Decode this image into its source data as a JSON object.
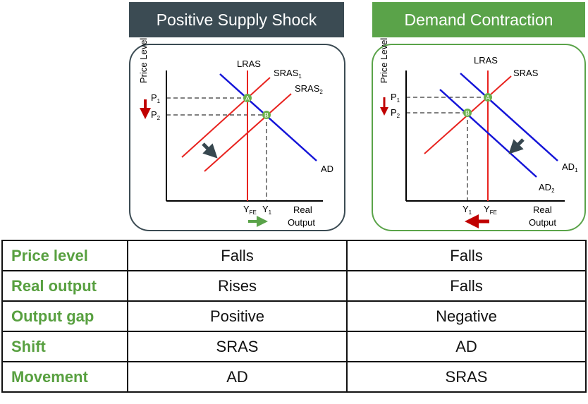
{
  "panels": [
    {
      "title": "Positive Supply Shock",
      "y_axis": "Price Level",
      "x_axis": [
        "Real",
        "Output"
      ],
      "curves": {
        "lras": "LRAS",
        "sras1": "SRAS",
        "sras1_sub": "1",
        "sras2": "SRAS",
        "sras2_sub": "2",
        "ad": "AD"
      },
      "prices": {
        "p1": "P",
        "p1_sub": "1",
        "p2": "P",
        "p2_sub": "2"
      },
      "outputs": {
        "yfe": "Y",
        "yfe_sub": "FE",
        "y1": "Y",
        "y1_sub": "1"
      },
      "points": {
        "a": "A",
        "b": "B"
      },
      "border_color": "#3b4b53"
    },
    {
      "title": "Demand Contraction",
      "y_axis": "Price Level",
      "x_axis": [
        "Real",
        "Output"
      ],
      "curves": {
        "lras": "LRAS",
        "sras": "SRAS",
        "ad1": "AD",
        "ad1_sub": "1",
        "ad2": "AD",
        "ad2_sub": "2"
      },
      "prices": {
        "p1": "P",
        "p1_sub": "1",
        "p2": "P",
        "p2_sub": "2"
      },
      "outputs": {
        "y1": "Y",
        "y1_sub": "1",
        "yfe": "Y",
        "yfe_sub": "FE"
      },
      "points": {
        "a": "A",
        "b": "B"
      },
      "border_color": "#5aa349"
    }
  ],
  "colors": {
    "supply": "#e8231f",
    "demand": "#1515d8",
    "point": "#6ab04c",
    "shift_arrow": "#37474f",
    "price_arrow": "#c00000",
    "output_up": "#5aa349",
    "output_down": "#c00000"
  },
  "table": {
    "rows": [
      {
        "label": "Price level",
        "supply_shock": "Falls",
        "demand_contraction": "Falls"
      },
      {
        "label": "Real output",
        "supply_shock": "Rises",
        "demand_contraction": "Falls"
      },
      {
        "label": "Output gap",
        "supply_shock": "Positive",
        "demand_contraction": "Negative"
      },
      {
        "label": "Shift",
        "supply_shock": "SRAS",
        "demand_contraction": "AD"
      },
      {
        "label": "Movement",
        "supply_shock": "AD",
        "demand_contraction": "SRAS"
      }
    ]
  }
}
